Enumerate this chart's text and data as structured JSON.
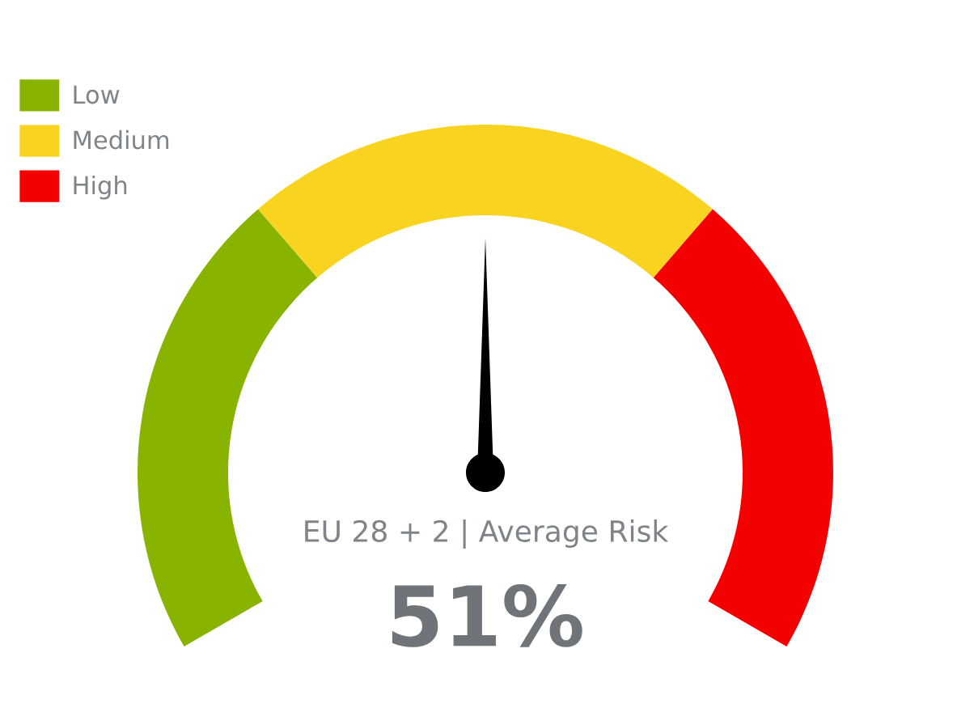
{
  "chart_data": {
    "type": "donut",
    "title": "EU 28 + 2 | Average Risk",
    "categories": [
      "Low",
      "Medium",
      "High"
    ],
    "values": [
      33,
      34,
      33
    ],
    "colors": [
      "#88b300",
      "#f8d420",
      "#f50000"
    ],
    "needle": "Medium",
    "legend": "top left",
    "annotations": [
      "51%"
    ]
  }
}
